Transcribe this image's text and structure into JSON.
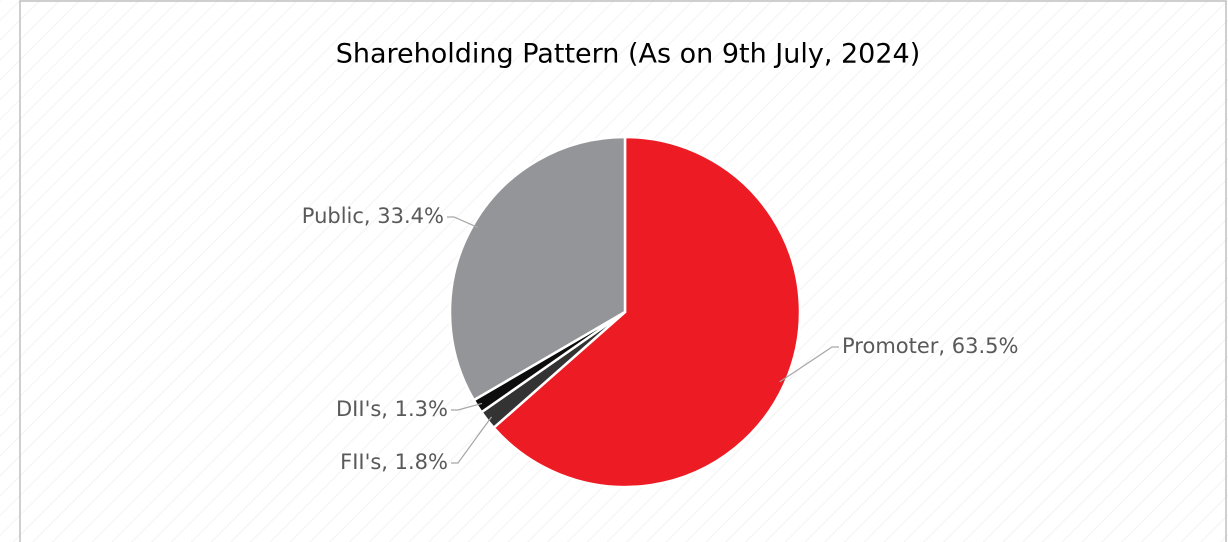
{
  "chart_data": {
    "type": "pie",
    "title": "Shareholding Pattern (As on 9th July, 2024)",
    "categories": [
      "Promoter",
      "FII's",
      "DII's",
      "Public"
    ],
    "values": [
      63.5,
      1.8,
      1.3,
      33.4
    ],
    "value_labels": [
      "Promoter, 63.5%",
      "FII's, 1.8%",
      "DII's, 1.3%",
      "Public, 33.4%"
    ],
    "colors": [
      "#ed1c24",
      "#333333",
      "#0d0d0d",
      "#939598"
    ]
  }
}
